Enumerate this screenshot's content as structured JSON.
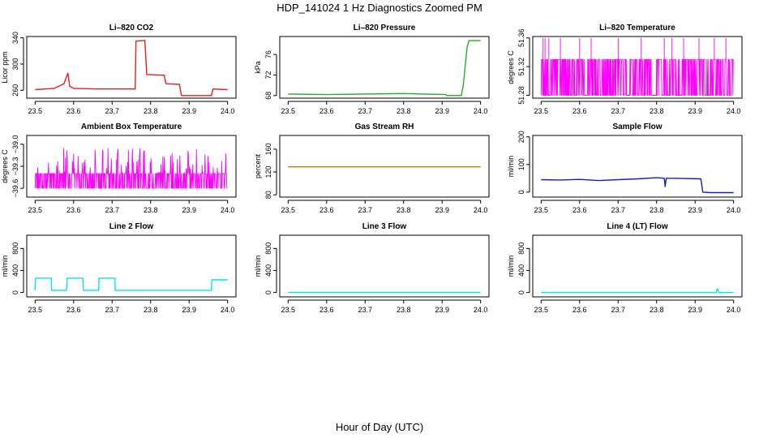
{
  "figure": {
    "title": "HDP_141024  1 Hz Diagnostics Zoomed PM",
    "xlabel": "Hour of Day (UTC)"
  },
  "chart_data": [
    {
      "type": "line",
      "title": "Li–820 CO2",
      "ylabel": "Licor ppm",
      "color": "#e8201a",
      "xlim": [
        23.5,
        24.0
      ],
      "ylim": [
        248,
        342
      ],
      "xticks": [
        "23.5",
        "23.6",
        "23.7",
        "23.8",
        "23.9",
        "24.0"
      ],
      "yticks": [
        {
          "v": 260,
          "label": "260"
        },
        {
          "v": 300,
          "label": "300"
        },
        {
          "v": 340,
          "label": "340"
        }
      ],
      "x": [
        23.5,
        23.55,
        23.575,
        23.585,
        23.59,
        23.6,
        23.66,
        23.76,
        23.762,
        23.785,
        23.79,
        23.835,
        23.84,
        23.875,
        23.88,
        23.958,
        23.962,
        24.0
      ],
      "y": [
        261,
        263,
        270,
        286,
        266,
        263,
        262,
        262,
        335,
        336,
        284,
        283,
        270,
        269,
        252,
        252,
        262,
        261
      ]
    },
    {
      "type": "line",
      "title": "Li–820 Pressure",
      "ylabel": "kPa",
      "color": "#22b022",
      "xlim": [
        23.5,
        24.0
      ],
      "ylim": [
        67.5,
        79.5
      ],
      "xticks": [
        "23.5",
        "23.6",
        "23.7",
        "23.8",
        "23.9",
        "24.0"
      ],
      "yticks": [
        {
          "v": 68,
          "label": "68"
        },
        {
          "v": 72,
          "label": "72"
        },
        {
          "v": 76,
          "label": "76"
        }
      ],
      "x": [
        23.5,
        23.6,
        23.7,
        23.8,
        23.85,
        23.91,
        23.912,
        23.95,
        23.955,
        23.965,
        23.97,
        24.0
      ],
      "y": [
        68.3,
        68.2,
        68.3,
        68.4,
        68.3,
        68.2,
        68.0,
        68.0,
        70.0,
        77.5,
        78.7,
        78.7
      ]
    },
    {
      "type": "line",
      "title": "Li–820 Temperature",
      "ylabel": "degrees C",
      "color": "#ff00ff",
      "xlim": [
        23.5,
        24.0
      ],
      "ylim": [
        51.276,
        51.362
      ],
      "xticks": [
        "23.5",
        "23.6",
        "23.7",
        "23.8",
        "23.9",
        "24.0"
      ],
      "yticks": [
        {
          "v": 51.28,
          "label": "51.28"
        },
        {
          "v": 51.32,
          "label": "51.32"
        },
        {
          "v": 51.36,
          "label": "51.36"
        }
      ],
      "levels": [
        51.28,
        51.33
      ],
      "spikes_to": 51.36,
      "spike_x": [
        23.505,
        23.51,
        23.52,
        23.55,
        23.6,
        23.63,
        23.7,
        23.76,
        23.82,
        23.84,
        23.87,
        23.91,
        23.95,
        23.98
      ]
    },
    {
      "type": "line",
      "title": "Ambient Box Temperature",
      "ylabel": "degrees C",
      "color": "#ff00ff",
      "xlim": [
        23.5,
        24.0
      ],
      "ylim": [
        -39.72,
        -38.88
      ],
      "xticks": [
        "23.5",
        "23.6",
        "23.7",
        "23.8",
        "23.9",
        "24.0"
      ],
      "yticks": [
        {
          "v": -39.6,
          "label": "−39.6"
        },
        {
          "v": -39.3,
          "label": "−39.3"
        },
        {
          "v": -39.0,
          "label": "−39.0"
        }
      ],
      "levels": [
        -39.6,
        -39.4
      ]
    },
    {
      "type": "line",
      "title": "Gas Stream RH",
      "ylabel": "percent",
      "color": "#e07000",
      "xlim": [
        23.5,
        24.0
      ],
      "ylim": [
        76,
        184
      ],
      "xticks": [
        "23.5",
        "23.6",
        "23.7",
        "23.8",
        "23.9",
        "24.0"
      ],
      "yticks": [
        {
          "v": 80,
          "label": "80"
        },
        {
          "v": 120,
          "label": "120"
        },
        {
          "v": 160,
          "label": "160"
        }
      ],
      "x": [
        23.5,
        24.0
      ],
      "y": [
        129,
        129
      ]
    },
    {
      "type": "line",
      "title": "Sample Flow",
      "ylabel": "ml/min",
      "color": "#1020d0",
      "xlim": [
        23.5,
        24.0
      ],
      "ylim": [
        -18,
        205
      ],
      "xticks": [
        "23.5",
        "23.6",
        "23.7",
        "23.8",
        "23.9",
        "24.0"
      ],
      "yticks": [
        {
          "v": 0,
          "label": "0"
        },
        {
          "v": 100,
          "label": "100"
        },
        {
          "v": 200,
          "label": "200"
        }
      ],
      "x": [
        23.5,
        23.55,
        23.6,
        23.65,
        23.7,
        23.75,
        23.8,
        23.82,
        23.822,
        23.825,
        23.85,
        23.915,
        23.92,
        23.94,
        24.0
      ],
      "y": [
        45,
        44,
        46,
        42,
        45,
        48,
        52,
        50,
        20,
        50,
        50,
        48,
        0,
        -2,
        -2
      ]
    },
    {
      "type": "line",
      "title": "Line 2 Flow",
      "ylabel": "ml/min",
      "color": "#00e5ee",
      "xlim": [
        23.5,
        24.0
      ],
      "ylim": [
        -80,
        1040
      ],
      "xticks": [
        "23.5",
        "23.6",
        "23.7",
        "23.8",
        "23.9",
        "24.0"
      ],
      "yticks": [
        {
          "v": 0,
          "label": "0"
        },
        {
          "v": 400,
          "label": "400"
        },
        {
          "v": 800,
          "label": "800"
        }
      ],
      "x": [
        23.5,
        23.501,
        23.542,
        23.543,
        23.582,
        23.583,
        23.624,
        23.625,
        23.665,
        23.666,
        23.707,
        23.708,
        23.958,
        23.959,
        24.0
      ],
      "y": [
        40,
        260,
        260,
        40,
        40,
        260,
        260,
        40,
        40,
        260,
        260,
        40,
        40,
        230,
        230
      ]
    },
    {
      "type": "line",
      "title": "Line 3 Flow",
      "ylabel": "ml/min",
      "color": "#00e5ee",
      "xlim": [
        23.5,
        24.0
      ],
      "ylim": [
        -80,
        1040
      ],
      "xticks": [
        "23.5",
        "23.6",
        "23.7",
        "23.8",
        "23.9",
        "24.0"
      ],
      "yticks": [
        {
          "v": 0,
          "label": "0"
        },
        {
          "v": 400,
          "label": "400"
        },
        {
          "v": 800,
          "label": "800"
        }
      ],
      "x": [
        23.5,
        23.6,
        23.7,
        23.8,
        23.9,
        24.0
      ],
      "y": [
        2,
        3,
        3,
        3,
        2,
        2
      ]
    },
    {
      "type": "line",
      "title": "Line 4 (LT) Flow",
      "ylabel": "ml/min",
      "color": "#00e5ee",
      "xlim": [
        23.5,
        24.0
      ],
      "ylim": [
        -80,
        1040
      ],
      "xticks": [
        "23.5",
        "23.6",
        "23.7",
        "23.8",
        "23.9",
        "24.0"
      ],
      "yticks": [
        {
          "v": 0,
          "label": "0"
        },
        {
          "v": 400,
          "label": "400"
        },
        {
          "v": 800,
          "label": "800"
        }
      ],
      "x": [
        23.5,
        23.955,
        23.957,
        23.959,
        23.961,
        24.0
      ],
      "y": [
        0,
        0,
        60,
        60,
        0,
        0
      ]
    }
  ]
}
